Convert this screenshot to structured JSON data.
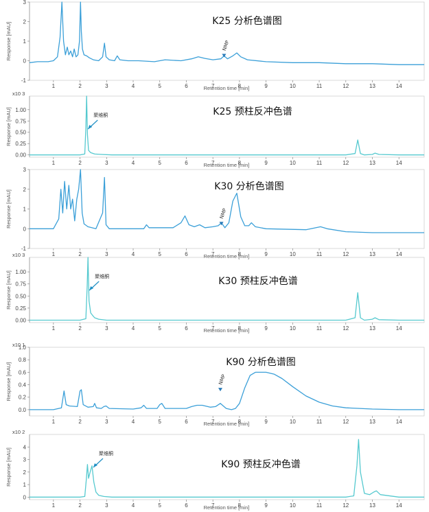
{
  "chart_data": [
    {
      "type": "line",
      "title": "K25 分析色谱图",
      "xlabel": "Retention time [min]",
      "ylabel": "Response [mAU]",
      "y_multiplier": "",
      "xlim": [
        0.1,
        14.95
      ],
      "ylim": [
        -1,
        3
      ],
      "x_ticks": [
        "1",
        "2",
        "3",
        "4",
        "5",
        "6",
        "7",
        "8",
        "9",
        "10",
        "11",
        "12",
        "13",
        "14"
      ],
      "y_ticks": [
        "-1",
        "0",
        "1",
        "2",
        "3"
      ],
      "color": "#3a9fd8",
      "series": [
        {
          "x": [
            0.1,
            0.4,
            0.8,
            1.0,
            1.15,
            1.25,
            1.32,
            1.38,
            1.45,
            1.52,
            1.58,
            1.65,
            1.72,
            1.78,
            1.85,
            1.92,
            1.98,
            2.02,
            2.05,
            2.09,
            2.15,
            2.25,
            2.35,
            2.5,
            2.7,
            2.85,
            2.92,
            2.98,
            3.1,
            3.3,
            3.4,
            3.5,
            3.8,
            4.2,
            4.8,
            5.2,
            5.8,
            6.2,
            6.45,
            6.7,
            7.0,
            7.3,
            7.42,
            7.55,
            7.75,
            7.9,
            8.05,
            8.3,
            9.0,
            10.0,
            11.0,
            12.0,
            13.0,
            14.0,
            14.95
          ],
          "y": [
            -0.1,
            -0.05,
            -0.05,
            0.0,
            0.2,
            1.2,
            3.0,
            1.0,
            0.3,
            0.7,
            0.3,
            0.5,
            0.2,
            0.6,
            0.2,
            0.3,
            1.0,
            3.0,
            1.5,
            0.6,
            0.3,
            0.25,
            0.15,
            0.05,
            0.0,
            0.2,
            0.9,
            0.2,
            0.05,
            0.0,
            0.25,
            0.05,
            0.0,
            0.0,
            -0.05,
            0.05,
            0.0,
            0.1,
            0.2,
            0.12,
            0.05,
            0.1,
            0.25,
            0.1,
            0.25,
            0.4,
            0.2,
            0.05,
            -0.05,
            -0.1,
            -0.1,
            -0.15,
            -0.15,
            -0.2,
            -0.2
          ]
        }
      ],
      "annotations": [
        {
          "text": "NMP",
          "x": 7.42
        }
      ]
    },
    {
      "type": "line",
      "title": "K25 预柱反冲色谱",
      "xlabel": "Retention time [min]",
      "ylabel": "Response [mAU]",
      "y_multiplier": "x10 3",
      "xlim": [
        0.1,
        14.95
      ],
      "ylim": [
        -0.05,
        1.3
      ],
      "x_ticks": [
        "1",
        "2",
        "3",
        "4",
        "5",
        "6",
        "7",
        "8",
        "9",
        "10",
        "11",
        "12",
        "13",
        "14"
      ],
      "y_ticks": [
        "0.00",
        "0.25",
        "0.50",
        "0.75",
        "1.00"
      ],
      "color": "#55c9cf",
      "series": [
        {
          "x": [
            0.1,
            2.0,
            2.18,
            2.22,
            2.25,
            2.28,
            2.32,
            2.4,
            2.55,
            2.8,
            3.2,
            6.0,
            12.0,
            12.35,
            12.45,
            12.55,
            12.7,
            13.0,
            13.1,
            13.25,
            14.0,
            14.95
          ],
          "y": [
            0.0,
            0.0,
            0.02,
            0.6,
            1.3,
            0.45,
            0.1,
            0.05,
            0.02,
            0.01,
            0.0,
            0.0,
            0.0,
            0.03,
            0.33,
            0.03,
            0.0,
            0.01,
            0.04,
            0.01,
            0.0,
            0.0
          ]
        }
      ],
      "annotations": [
        {
          "text": "聚维酮",
          "x": 2.25
        }
      ]
    },
    {
      "type": "line",
      "title": "K30 分析色谱图",
      "xlabel": "Retention time [min]",
      "ylabel": "Response [mAU]",
      "y_multiplier": "",
      "xlim": [
        0.1,
        14.95
      ],
      "ylim": [
        -1,
        3
      ],
      "x_ticks": [
        "1",
        "2",
        "3",
        "4",
        "5",
        "6",
        "7",
        "8",
        "9",
        "10",
        "11",
        "12",
        "13",
        "14"
      ],
      "y_ticks": [
        "-1",
        "0",
        "1",
        "2",
        "3"
      ],
      "color": "#3a9fd8",
      "series": [
        {
          "x": [
            0.1,
            1.0,
            1.2,
            1.28,
            1.35,
            1.42,
            1.5,
            1.58,
            1.65,
            1.72,
            1.8,
            1.88,
            1.95,
            2.02,
            2.08,
            2.15,
            2.3,
            2.6,
            2.85,
            2.92,
            2.98,
            3.1,
            3.6,
            4.4,
            4.5,
            4.6,
            5.0,
            5.5,
            5.8,
            5.95,
            6.1,
            6.3,
            6.5,
            6.7,
            7.0,
            7.2,
            7.32,
            7.45,
            7.6,
            7.75,
            7.9,
            8.05,
            8.2,
            8.35,
            8.45,
            8.6,
            9.0,
            10.5,
            11.05,
            11.3,
            12.0,
            13.0,
            14.0,
            14.95
          ],
          "y": [
            0.0,
            0.0,
            0.5,
            2.0,
            0.8,
            2.4,
            1.0,
            2.2,
            1.0,
            1.5,
            0.4,
            1.5,
            2.0,
            3.0,
            0.8,
            0.25,
            0.1,
            0.0,
            0.8,
            2.6,
            0.2,
            0.0,
            0.0,
            0.0,
            0.2,
            0.05,
            0.05,
            0.05,
            0.3,
            0.65,
            0.2,
            0.1,
            0.2,
            0.05,
            0.1,
            0.15,
            0.3,
            0.05,
            0.3,
            1.4,
            1.8,
            0.6,
            0.15,
            0.15,
            0.3,
            0.1,
            0.0,
            -0.05,
            0.1,
            0.0,
            -0.15,
            -0.2,
            -0.2,
            -0.2
          ]
        }
      ],
      "annotations": [
        {
          "text": "NMP",
          "x": 7.32
        }
      ]
    },
    {
      "type": "line",
      "title": "K30 预柱反冲色谱",
      "xlabel": "Retention time [min]",
      "ylabel": "Response [mAU]",
      "y_multiplier": "x10 3",
      "xlim": [
        0.1,
        14.95
      ],
      "ylim": [
        -0.05,
        1.3
      ],
      "x_ticks": [
        "1",
        "2",
        "3",
        "4",
        "5",
        "6",
        "7",
        "8",
        "9",
        "10",
        "11",
        "12",
        "13",
        "14"
      ],
      "y_ticks": [
        "0.00",
        "0.25",
        "0.50",
        "0.75",
        "1.00"
      ],
      "color": "#55c9cf",
      "series": [
        {
          "x": [
            0.1,
            2.0,
            2.22,
            2.27,
            2.3,
            2.34,
            2.4,
            2.47,
            2.55,
            2.7,
            3.0,
            6.0,
            12.0,
            12.35,
            12.45,
            12.55,
            12.7,
            13.0,
            13.1,
            13.25,
            14.0,
            14.95
          ],
          "y": [
            0.0,
            0.0,
            0.03,
            0.7,
            1.3,
            0.4,
            0.15,
            0.1,
            0.05,
            0.02,
            0.0,
            0.0,
            0.0,
            0.05,
            0.57,
            0.05,
            0.0,
            0.02,
            0.05,
            0.01,
            0.0,
            0.0
          ]
        }
      ],
      "annotations": [
        {
          "text": "聚维酮",
          "x": 2.3
        }
      ]
    },
    {
      "type": "line",
      "title": "K90 分析色谱图",
      "xlabel": "Retention time [min]",
      "ylabel": "Response [mAU]",
      "y_multiplier": "x10 1",
      "xlim": [
        0.1,
        14.95
      ],
      "ylim": [
        -0.1,
        1.0
      ],
      "x_ticks": [
        "1",
        "2",
        "3",
        "4",
        "5",
        "6",
        "7",
        "8",
        "9",
        "10",
        "11",
        "12",
        "13",
        "14"
      ],
      "y_ticks": [
        "0.0",
        "0.2",
        "0.4",
        "0.6",
        "0.8",
        "1.0"
      ],
      "color": "#3a9fd8",
      "series": [
        {
          "x": [
            0.1,
            1.0,
            1.3,
            1.4,
            1.48,
            1.6,
            1.9,
            2.0,
            2.05,
            2.12,
            2.3,
            2.5,
            2.55,
            2.62,
            2.8,
            2.9,
            2.98,
            3.1,
            4.0,
            4.3,
            4.4,
            4.5,
            4.9,
            5.0,
            5.08,
            5.2,
            6.0,
            6.2,
            6.4,
            6.6,
            6.9,
            7.1,
            7.28,
            7.5,
            7.7,
            7.85,
            8.0,
            8.2,
            8.4,
            8.6,
            8.8,
            9.0,
            9.3,
            9.6,
            10.0,
            10.5,
            11.0,
            11.5,
            12.0,
            13.0,
            14.0,
            14.95
          ],
          "y": [
            0.0,
            0.0,
            0.03,
            0.3,
            0.08,
            0.06,
            0.05,
            0.3,
            0.32,
            0.08,
            0.04,
            0.05,
            0.1,
            0.03,
            0.02,
            0.05,
            0.06,
            0.02,
            0.01,
            0.03,
            0.07,
            0.02,
            0.02,
            0.08,
            0.1,
            0.02,
            0.02,
            0.05,
            0.07,
            0.07,
            0.04,
            0.05,
            0.1,
            0.02,
            0.0,
            0.02,
            0.1,
            0.35,
            0.55,
            0.6,
            0.6,
            0.6,
            0.57,
            0.5,
            0.37,
            0.22,
            0.12,
            0.06,
            0.03,
            0.01,
            0.0,
            0.0
          ]
        }
      ],
      "annotations": [
        {
          "text": "NMP",
          "x": 7.28
        }
      ]
    },
    {
      "type": "line",
      "title": "K90 预柱反冲色谱",
      "xlabel": "Retention time [min]",
      "ylabel": "Response [mAU]",
      "y_multiplier": "x10 2",
      "xlim": [
        0.1,
        14.95
      ],
      "ylim": [
        -0.2,
        5.0
      ],
      "x_ticks": [
        "1",
        "2",
        "3",
        "4",
        "5",
        "6",
        "7",
        "8",
        "9",
        "10",
        "11",
        "12",
        "13",
        "14"
      ],
      "y_ticks": [
        "0",
        "1",
        "2",
        "3",
        "4"
      ],
      "color": "#55c9cf",
      "series": [
        {
          "x": [
            0.1,
            2.0,
            2.18,
            2.24,
            2.28,
            2.32,
            2.38,
            2.45,
            2.52,
            2.6,
            2.7,
            2.9,
            3.2,
            6.0,
            12.0,
            12.3,
            12.42,
            12.48,
            12.55,
            12.7,
            12.9,
            13.05,
            13.15,
            13.3,
            14.0,
            14.95
          ],
          "y": [
            0.0,
            0.0,
            0.05,
            1.5,
            2.6,
            1.5,
            2.0,
            2.5,
            1.2,
            0.4,
            0.15,
            0.05,
            0.0,
            0.0,
            0.0,
            0.1,
            2.5,
            4.6,
            2.0,
            0.3,
            0.2,
            0.4,
            0.5,
            0.2,
            0.0,
            0.0
          ]
        }
      ],
      "annotations": [
        {
          "text": "聚维酮",
          "x": 2.45
        }
      ]
    }
  ]
}
